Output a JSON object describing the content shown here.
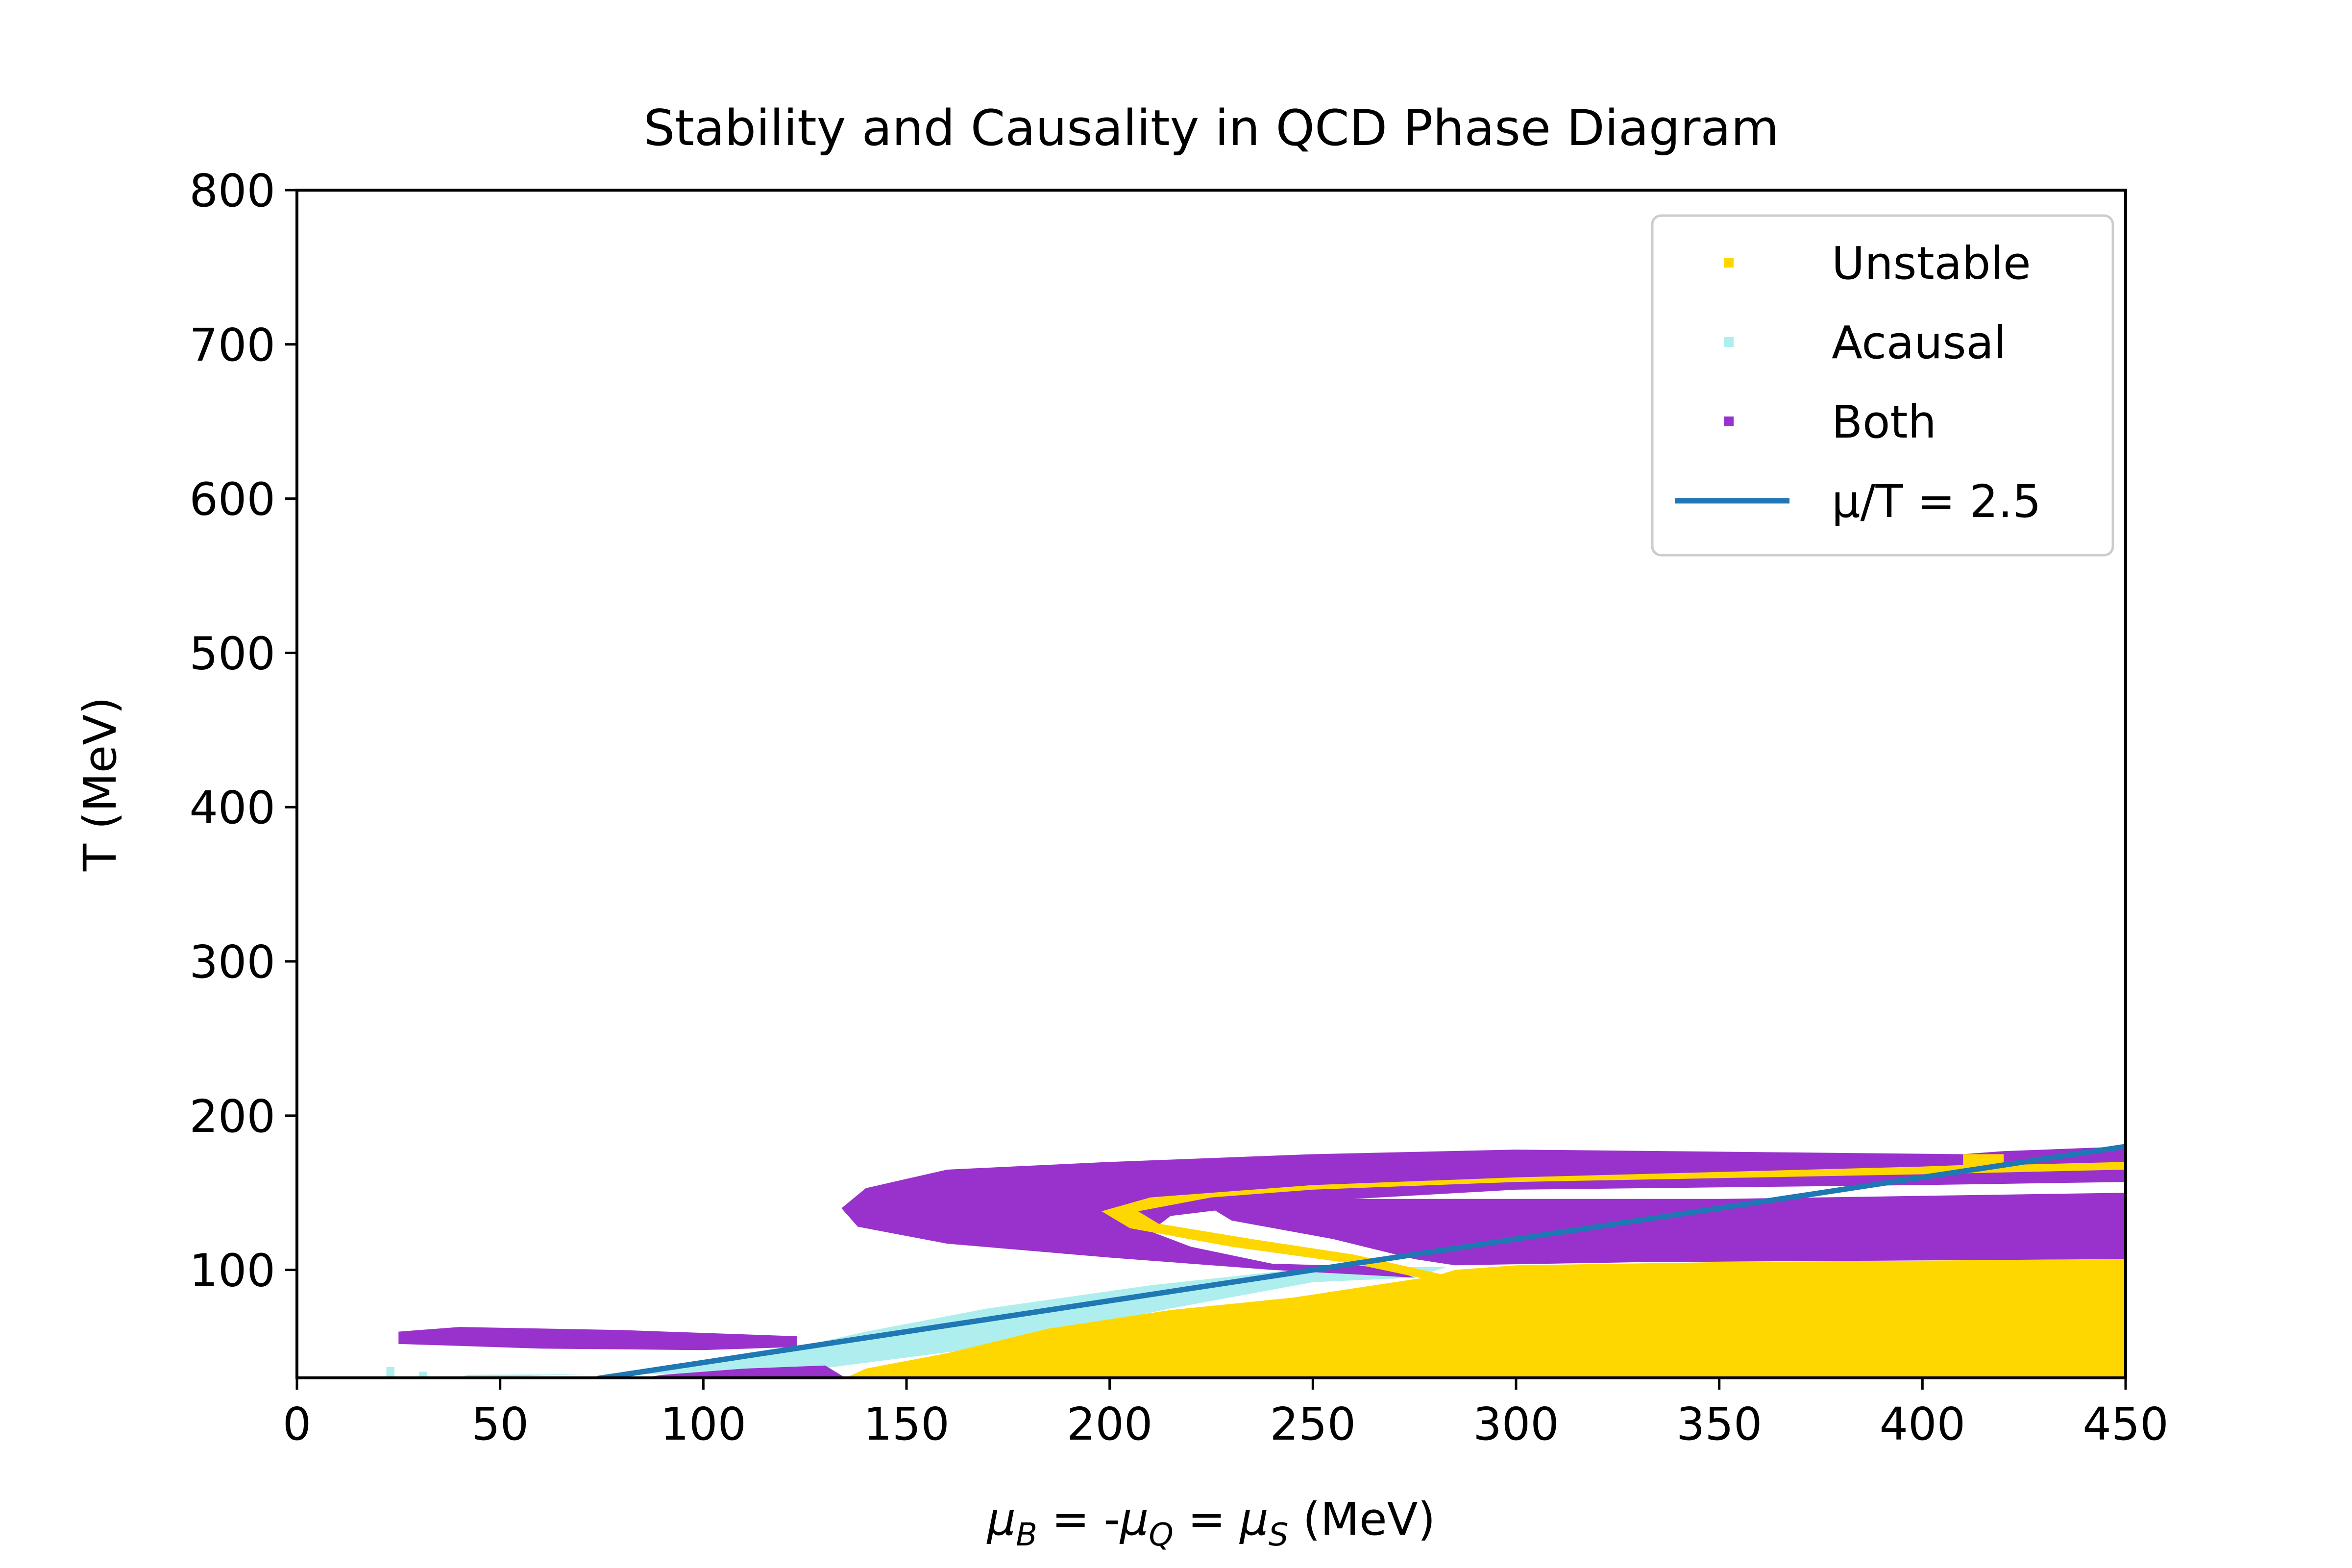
{
  "chart_data": {
    "type": "scatter",
    "title": "Stability and Causality in QCD Phase Diagram",
    "xlabel_parts": [
      "μ",
      "B",
      " = -",
      "μ",
      "Q",
      " = ",
      "μ",
      "S",
      " (MeV)"
    ],
    "ylabel": "T (MeV)",
    "xlim": [
      0,
      450
    ],
    "ylim": [
      30,
      800
    ],
    "xticks": [
      0,
      50,
      100,
      150,
      200,
      250,
      300,
      350,
      400,
      450
    ],
    "yticks": [
      100,
      200,
      300,
      400,
      500,
      600,
      700,
      800
    ],
    "grid": false,
    "legend_position": "top-right",
    "legend": [
      {
        "label": "Unstable",
        "kind": "marker",
        "color": "#FFD700"
      },
      {
        "label": "Acausal",
        "kind": "marker",
        "color": "#AFEEEE"
      },
      {
        "label": "Both",
        "kind": "marker",
        "color": "#9932CC"
      },
      {
        "label": "μ/T = 2.5",
        "kind": "line",
        "color": "#1f77b4"
      }
    ],
    "regions": [
      {
        "name": "acausal-band",
        "color": "#AFEEEE",
        "polygon": [
          [
            40,
            30
          ],
          [
            42,
            32
          ],
          [
            120,
            33
          ],
          [
            170,
            50
          ],
          [
            215,
            75
          ],
          [
            250,
            92
          ],
          [
            275,
            95
          ],
          [
            283,
            102
          ],
          [
            268,
            102
          ],
          [
            245,
            100
          ],
          [
            210,
            90
          ],
          [
            170,
            75
          ],
          [
            140,
            60
          ],
          [
            115,
            45
          ],
          [
            90,
            36
          ],
          [
            80,
            33
          ]
        ]
      },
      {
        "name": "acausal-dot-1",
        "color": "#AFEEEE",
        "polygon": [
          [
            22,
            30
          ],
          [
            24,
            30
          ],
          [
            24,
            37
          ],
          [
            22,
            37
          ]
        ]
      },
      {
        "name": "acausal-dot-2",
        "color": "#AFEEEE",
        "polygon": [
          [
            30,
            30
          ],
          [
            32,
            30
          ],
          [
            32,
            34
          ],
          [
            30,
            34
          ]
        ]
      },
      {
        "name": "both-upper-band",
        "color": "#9932CC",
        "polygon": [
          [
            450,
            180
          ],
          [
            420,
            177
          ],
          [
            410,
            175
          ],
          [
            300,
            178
          ],
          [
            250,
            175
          ],
          [
            200,
            170
          ],
          [
            160,
            165
          ],
          [
            140,
            153
          ],
          [
            134,
            140
          ],
          [
            138,
            128
          ],
          [
            160,
            117
          ],
          [
            200,
            108
          ],
          [
            240,
            100
          ],
          [
            275,
            95
          ],
          [
            268,
            102
          ],
          [
            240,
            104
          ],
          [
            220,
            115
          ],
          [
            210,
            125
          ],
          [
            215,
            135
          ],
          [
            240,
            143
          ],
          [
            300,
            152
          ],
          [
            400,
            155
          ],
          [
            450,
            157
          ]
        ]
      },
      {
        "name": "both-mid-band",
        "color": "#9932CC",
        "polygon": [
          [
            450,
            150
          ],
          [
            350,
            146
          ],
          [
            250,
            146
          ],
          [
            225,
            140
          ],
          [
            230,
            132
          ],
          [
            255,
            120
          ],
          [
            275,
            107
          ],
          [
            285,
            103
          ],
          [
            330,
            105
          ],
          [
            450,
            107
          ]
        ]
      },
      {
        "name": "both-low-small",
        "color": "#9932CC",
        "polygon": [
          [
            25,
            60
          ],
          [
            40,
            63
          ],
          [
            80,
            61
          ],
          [
            123,
            57
          ],
          [
            123,
            50
          ],
          [
            100,
            48
          ],
          [
            60,
            49
          ],
          [
            25,
            52
          ]
        ]
      },
      {
        "name": "both-low-left",
        "color": "#9932CC",
        "polygon": [
          [
            85,
            30
          ],
          [
            90,
            32
          ],
          [
            110,
            36
          ],
          [
            130,
            38
          ],
          [
            135,
            30
          ]
        ]
      },
      {
        "name": "unstable-thin-upper",
        "color": "#FFD700",
        "polygon": [
          [
            410,
            175
          ],
          [
            420,
            175
          ],
          [
            420,
            168
          ],
          [
            450,
            170
          ],
          [
            450,
            165
          ],
          [
            400,
            162
          ],
          [
            300,
            157
          ],
          [
            250,
            152
          ],
          [
            225,
            147
          ],
          [
            207,
            138
          ],
          [
            212,
            130
          ],
          [
            235,
            120
          ],
          [
            260,
            110
          ],
          [
            282,
            97
          ],
          [
            278,
            94
          ],
          [
            260,
            104
          ],
          [
            230,
            115
          ],
          [
            205,
            127
          ],
          [
            198,
            138
          ],
          [
            210,
            147
          ],
          [
            250,
            155
          ],
          [
            300,
            160
          ],
          [
            400,
            167
          ],
          [
            410,
            168
          ]
        ]
      },
      {
        "name": "unstable-main",
        "color": "#FFD700",
        "polygon": [
          [
            450,
            107
          ],
          [
            400,
            106
          ],
          [
            350,
            105
          ],
          [
            300,
            103
          ],
          [
            285,
            100
          ],
          [
            280,
            96
          ],
          [
            265,
            90
          ],
          [
            245,
            82
          ],
          [
            215,
            74
          ],
          [
            185,
            62
          ],
          [
            160,
            46
          ],
          [
            140,
            36
          ],
          [
            135,
            30
          ],
          [
            450,
            30
          ]
        ]
      }
    ],
    "line_series": {
      "name": "μ/T = 2.5",
      "color": "#1f77b4",
      "x": [
        74,
        450
      ],
      "y": [
        29.6,
        180
      ]
    }
  }
}
